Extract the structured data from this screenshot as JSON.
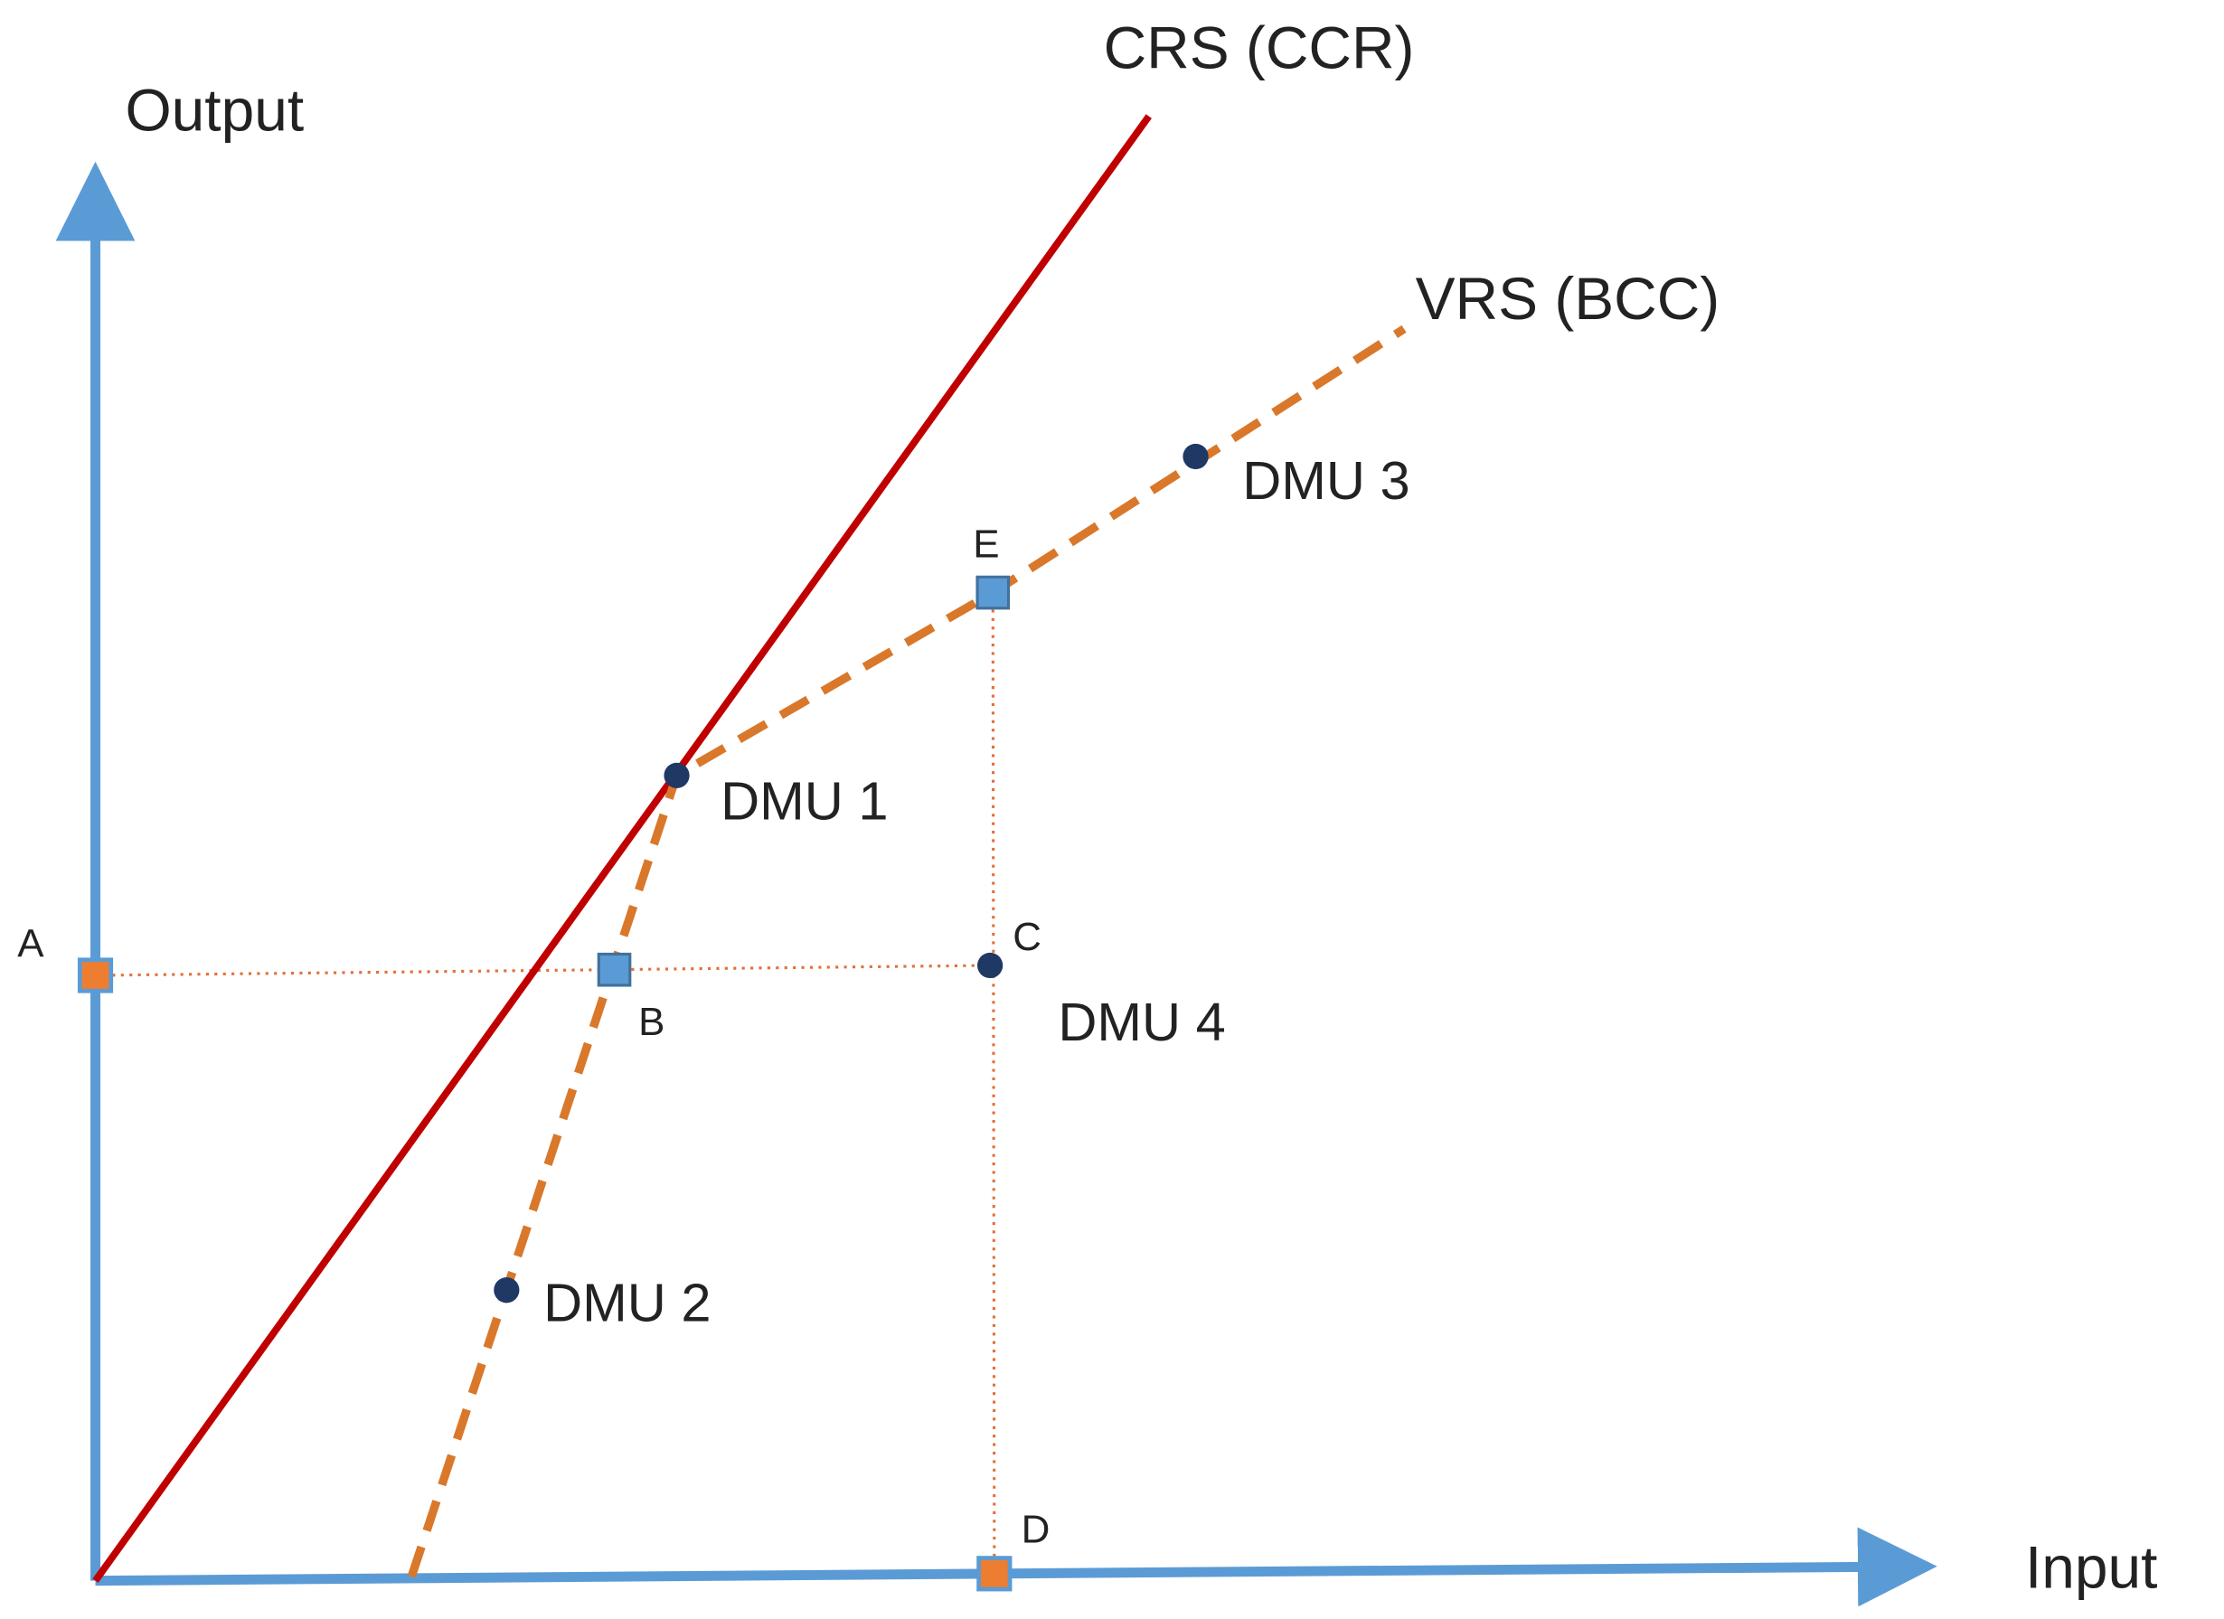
{
  "axes": {
    "y": "Output",
    "x": "Input"
  },
  "frontiers": [
    {
      "label": "CRS (CCR)"
    },
    {
      "label": "VRS (BCC)"
    }
  ],
  "dmus": [
    {
      "label": "DMU 1"
    },
    {
      "label": "DMU 2"
    },
    {
      "label": "DMU 3"
    },
    {
      "label": "DMU 4"
    }
  ],
  "points": [
    {
      "label": "A"
    },
    {
      "label": "B"
    },
    {
      "label": "C"
    },
    {
      "label": "D"
    },
    {
      "label": "E"
    }
  ]
}
